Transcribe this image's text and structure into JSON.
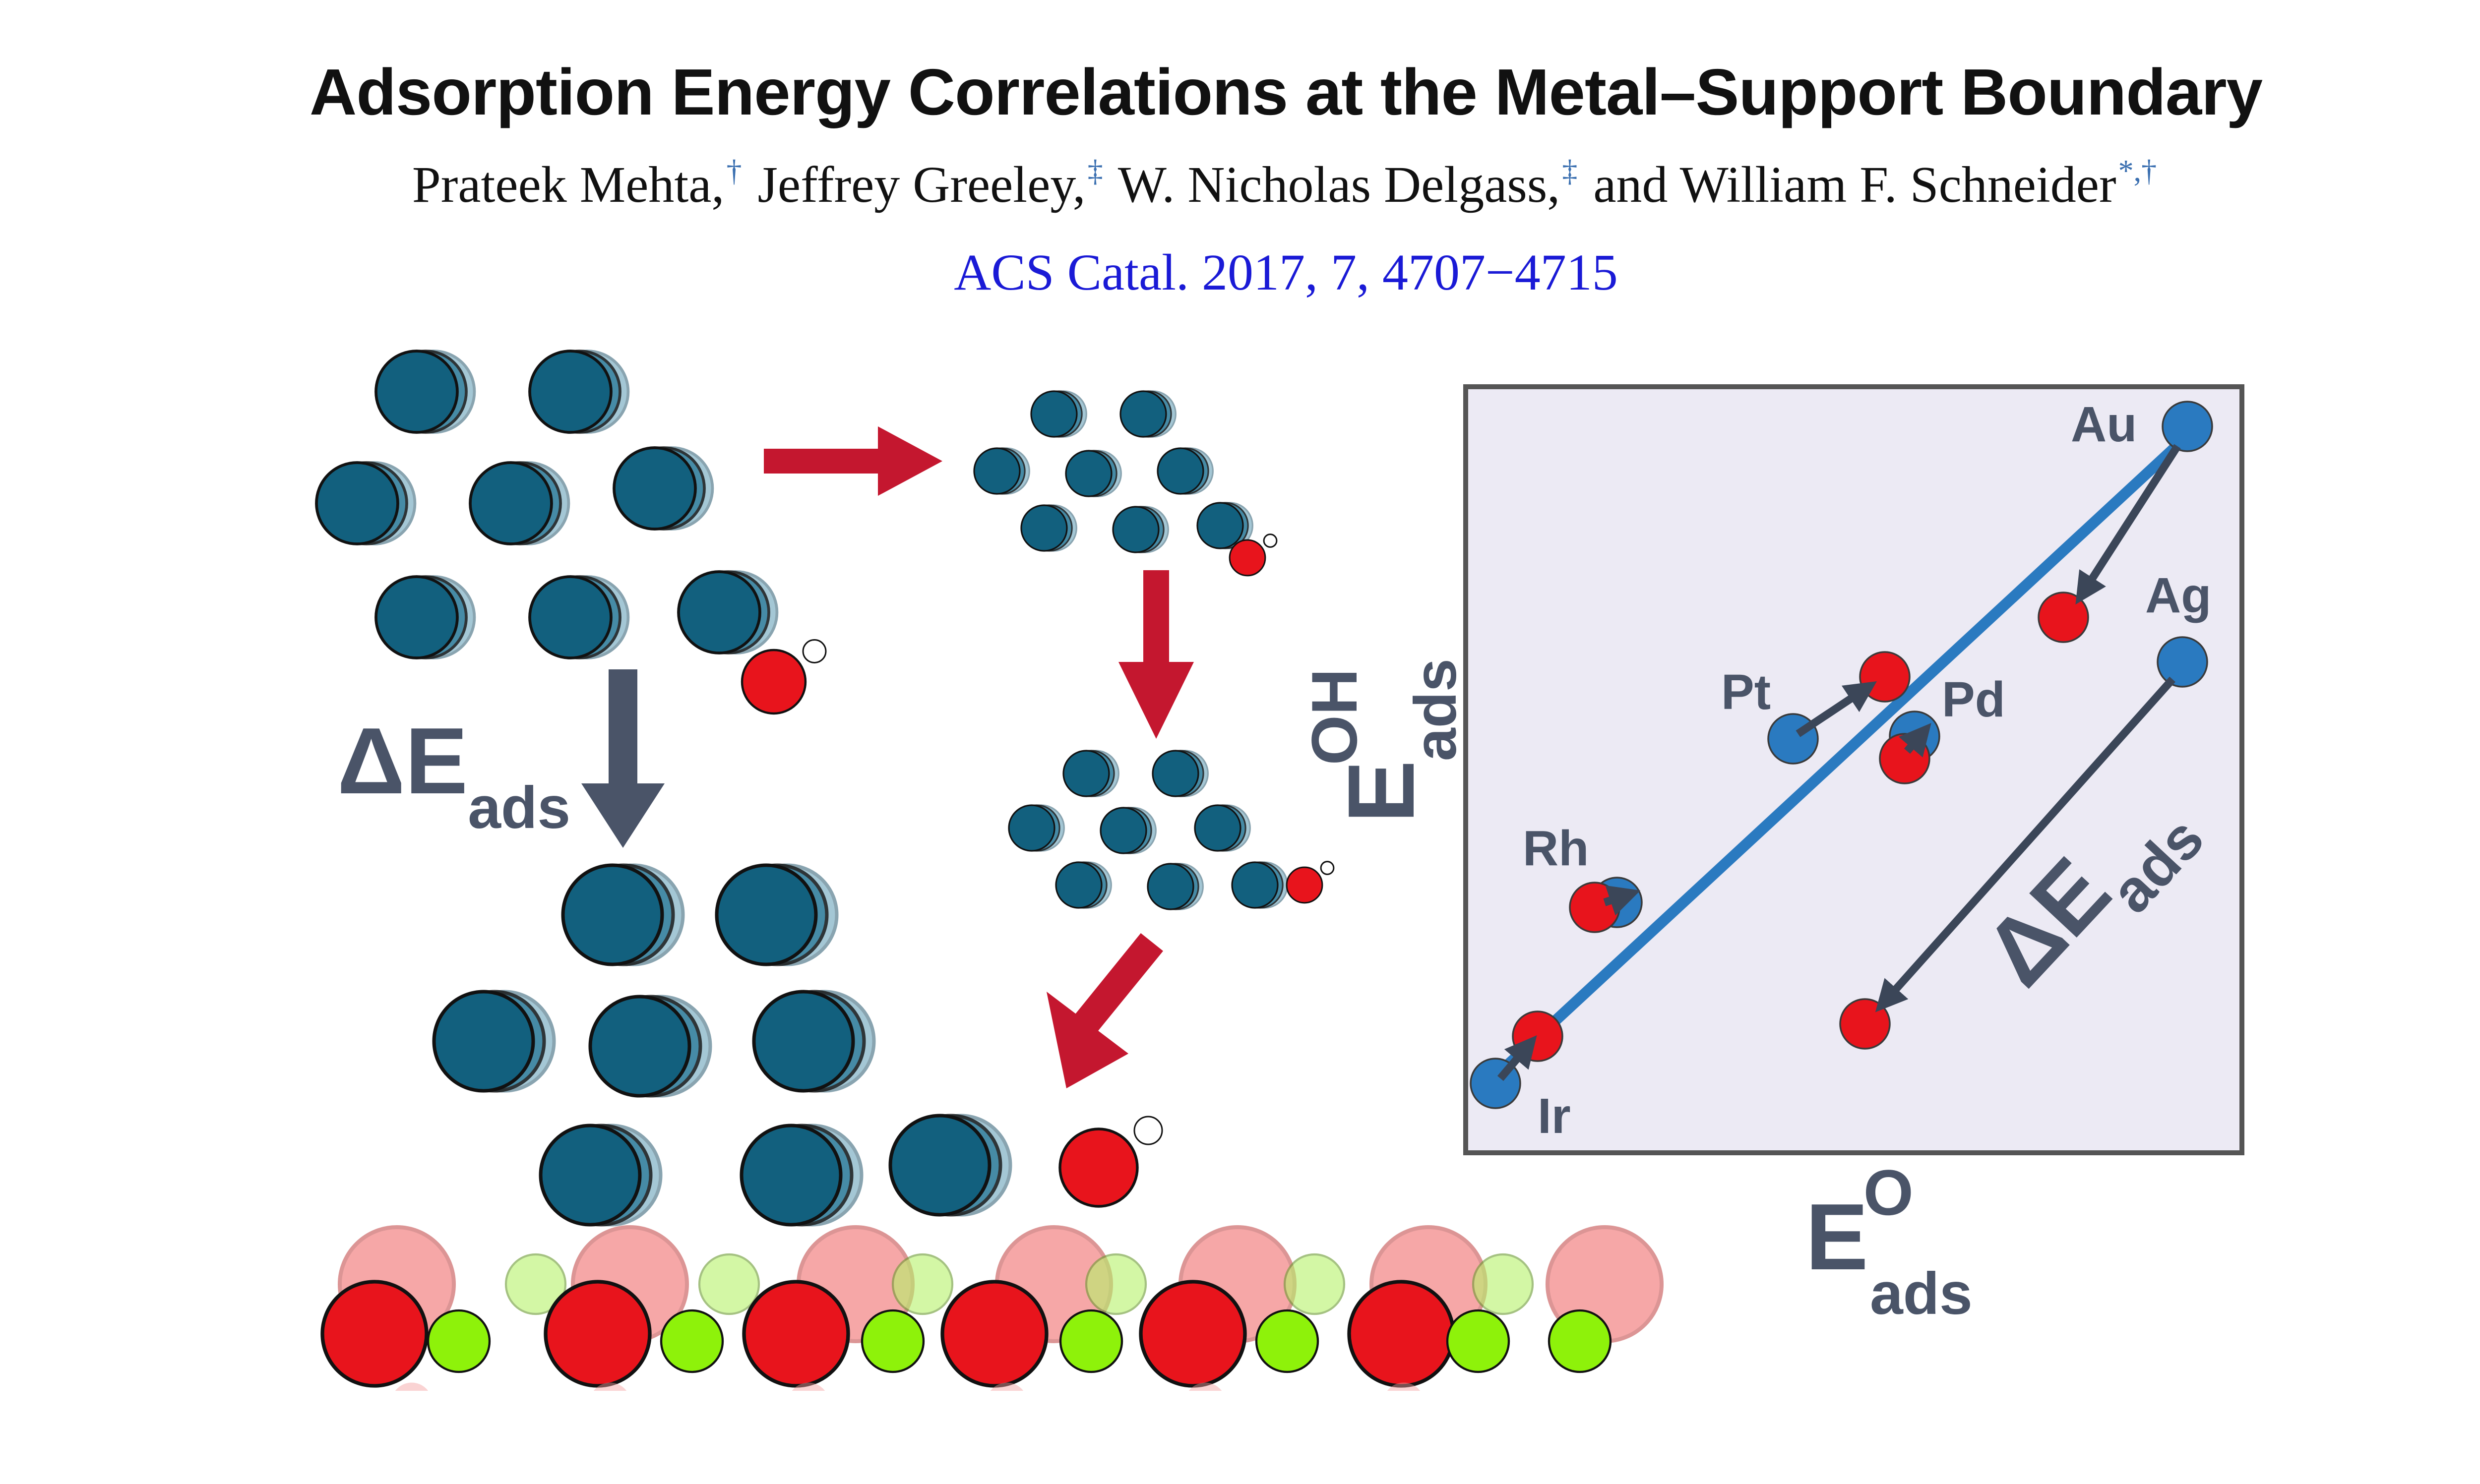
{
  "header": {
    "title": "Adsorption Energy Correlations at the Metal–Support Boundary",
    "authors": [
      {
        "name": "Prateek Mehta,",
        "mark": "†"
      },
      {
        "name": "Jeffrey Greeley,",
        "mark": "‡"
      },
      {
        "name": "W. Nicholas Delgass,",
        "mark": "‡"
      },
      {
        "name": "and William F. Schneider",
        "mark": "*,†"
      }
    ],
    "citation": "ACS Catal. 2017, 7, 4707−4715"
  },
  "schematic": {
    "delta_label": {
      "main": "ΔE",
      "sub": "ads"
    }
  },
  "plot": {
    "x_label": {
      "main": "E",
      "sup": "O",
      "sub": "ads"
    },
    "y_label": {
      "main": "E",
      "sup": "OH",
      "sub": "ads"
    },
    "delta_label": {
      "main": "ΔE",
      "sub": "ads"
    },
    "metals": [
      "Au",
      "Ag",
      "Pt",
      "Pd",
      "Rh",
      "Ir"
    ]
  },
  "colors": {
    "metal_atom": "#12607e",
    "oxygen": "#e8141c",
    "support_cation": "#8ef20a",
    "arrow_red": "#c4172f",
    "arrow_dark": "#4a5468",
    "plot_blue": "#2a7ac0",
    "plot_bg": "#eceaf4"
  }
}
